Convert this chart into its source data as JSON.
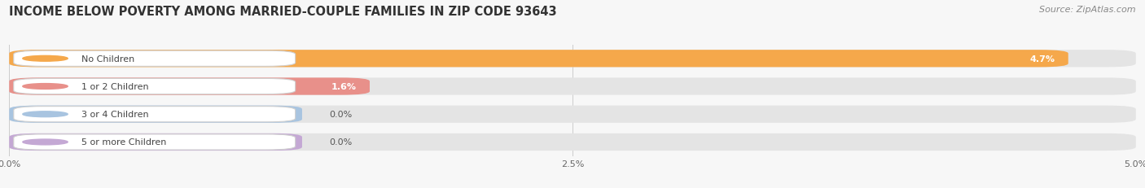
{
  "title": "INCOME BELOW POVERTY AMONG MARRIED-COUPLE FAMILIES IN ZIP CODE 93643",
  "source": "Source: ZipAtlas.com",
  "categories": [
    "No Children",
    "1 or 2 Children",
    "3 or 4 Children",
    "5 or more Children"
  ],
  "values": [
    4.7,
    1.6,
    0.0,
    0.0
  ],
  "bar_colors": [
    "#F5A84B",
    "#E8908A",
    "#A8C4E0",
    "#C4A8D4"
  ],
  "xlim": [
    0,
    5.0
  ],
  "xticks": [
    0.0,
    2.5,
    5.0
  ],
  "xticklabels": [
    "0.0%",
    "2.5%",
    "5.0%"
  ],
  "background_color": "#f7f7f7",
  "bar_bg_color": "#e4e4e4",
  "title_fontsize": 10.5,
  "source_fontsize": 8,
  "label_fontsize": 8,
  "value_fontsize": 8
}
